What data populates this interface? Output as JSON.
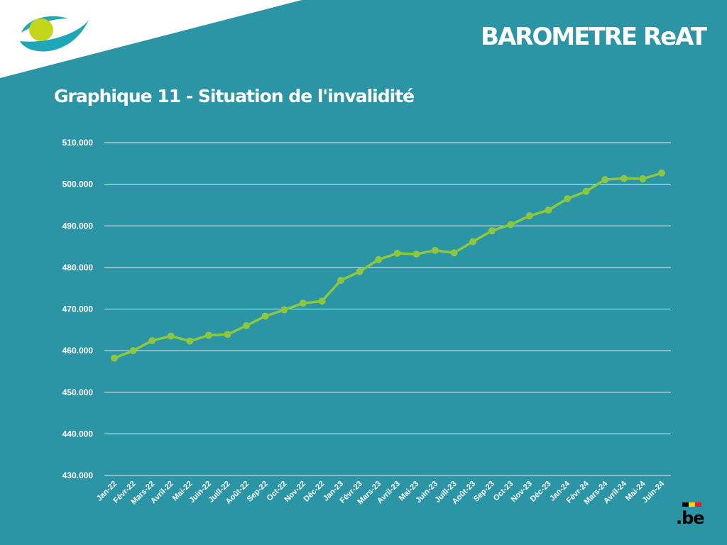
{
  "header": {
    "title": "BAROMETRE ReAT"
  },
  "colors": {
    "background": "#2b95a6",
    "line": "#8dc63f",
    "gridline": "#ffffff",
    "logo_teal": "#1fa6b8",
    "logo_yellow": "#c5d51a"
  },
  "footer": {
    "logo_text": ".be"
  },
  "chart_data": {
    "type": "line",
    "title": "Graphique 11 - Situation de l'invalidité",
    "xlabel": "",
    "ylabel": "",
    "ylim": [
      430000,
      510000
    ],
    "yticks": [
      430000,
      440000,
      450000,
      460000,
      470000,
      480000,
      490000,
      500000,
      510000
    ],
    "ytick_labels": [
      "430.000",
      "440.000",
      "450.000",
      "460.000",
      "470.000",
      "480.000",
      "490.000",
      "500.000",
      "510.000"
    ],
    "grid": true,
    "legend": "none",
    "categories": [
      "Jan-22",
      "Févr-22",
      "Mars-22",
      "Avril-22",
      "Mai-22",
      "Juin-22",
      "Juill-22",
      "Août-22",
      "Sep-22",
      "Oct-22",
      "Nov-22",
      "Déc-22",
      "Jan-23",
      "Févr-23",
      "Mars-23",
      "Avril-23",
      "Mai-23",
      "Juin-23",
      "Juill-23",
      "Août-23",
      "Sep-23",
      "Oct-23",
      "Nov-23",
      "Déc-23",
      "Jan-24",
      "Févr-24",
      "Mars-24",
      "Avril-24",
      "Mai-24",
      "Juin-24"
    ],
    "values": [
      458200,
      460000,
      462400,
      463500,
      462300,
      463700,
      463900,
      466000,
      468300,
      469800,
      471400,
      471900,
      476900,
      479000,
      481900,
      483400,
      483200,
      484100,
      483500,
      486200,
      488800,
      490300,
      492400,
      493800,
      496500,
      498300,
      501100,
      501400,
      501300,
      502700
    ]
  }
}
